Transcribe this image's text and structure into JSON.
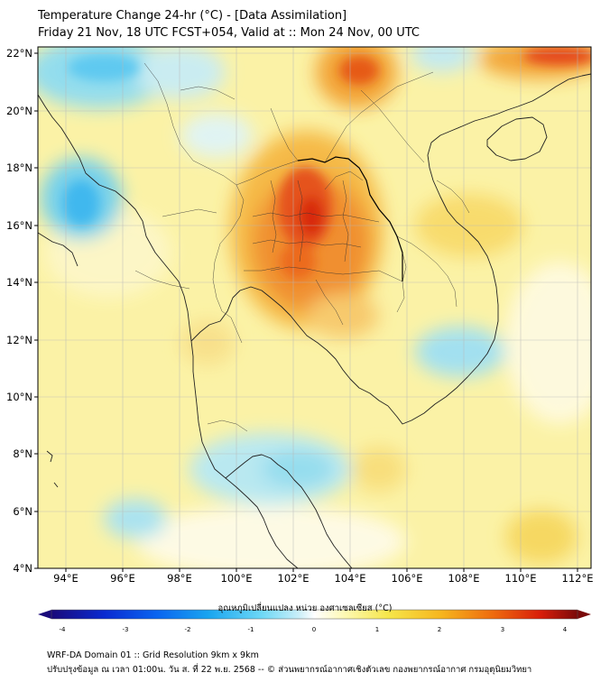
{
  "title": {
    "line1": "Temperature Change 24-hr (°C) - [Data Assimilation]",
    "line2": "Friday 21 Nov, 18 UTC FCST+054, Valid at :: Mon 24 Nov, 00 UTC"
  },
  "map": {
    "lat_labels": [
      "22°N",
      "20°N",
      "18°N",
      "16°N",
      "14°N",
      "12°N",
      "10°N",
      "8°N",
      "6°N",
      "4°N"
    ],
    "lon_labels": [
      "94°E",
      "96°E",
      "98°E",
      "100°E",
      "102°E",
      "104°E",
      "106°E",
      "108°E",
      "110°E",
      "112°E"
    ],
    "lat_range": [
      4,
      22.2
    ],
    "lon_range": [
      93,
      112.5
    ]
  },
  "colorbar": {
    "title": "อุณหภูมิเปลี่ยนแปลง หน่วย องศาเซลเซียส (°C)",
    "ticks": [
      "-4",
      "-3",
      "-2",
      "-1",
      "0",
      "1",
      "2",
      "3",
      "4"
    ],
    "range": [
      -4,
      4
    ],
    "colors": [
      "#1a0a7a",
      "#0a2ad0",
      "#0a64f0",
      "#1aa6f0",
      "#6ed8f6",
      "#c9eef8",
      "#ffffff",
      "#fdf8b0",
      "#f6e64a",
      "#f6b61e",
      "#ee6a0e",
      "#d81e0a",
      "#7a0a0a"
    ]
  },
  "footer": {
    "line1": "WRF-DA Domain 01 :: Grid Resolution 9km x 9km",
    "line2": "ปรับปรุงข้อมูล ณ เวลา 01:00น. วัน ส. ที่ 22 พ.ย. 2568 -- © ส่วนพยากรณ์อากาศเชิงตัวเลข กองพยากรณ์อากาศ กรมอุตุนิยมวิทยา"
  }
}
